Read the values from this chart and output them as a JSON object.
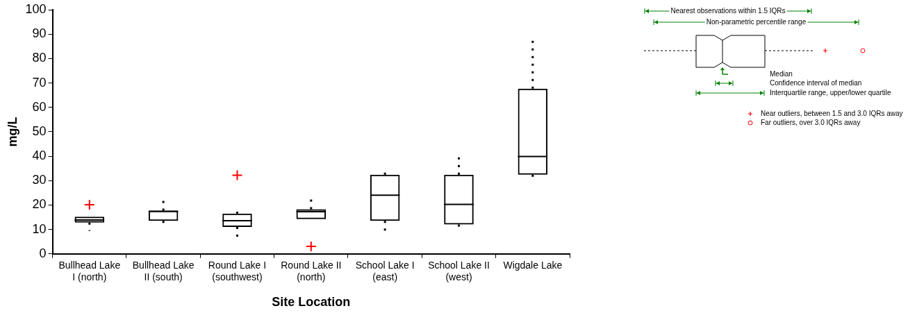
{
  "chart_data": {
    "type": "box",
    "xlabel": "Site Location",
    "ylabel": "mg/L",
    "categories": [
      "Bullhead Lake I (north)",
      "Bullhead Lake II (south)",
      "Round Lake I (southwest)",
      "Round Lake II (north)",
      "School Lake I (east)",
      "School Lake II (west)",
      "Wigdale Lake"
    ],
    "ylim": [
      0,
      100
    ],
    "yticks": [
      0,
      10,
      20,
      30,
      40,
      50,
      60,
      70,
      80,
      90,
      100
    ],
    "grid": false,
    "legend": false,
    "line_style": "dotted",
    "series": [
      {
        "color": "#000000",
        "boxes": [
          {
            "low": 9.4,
            "q1": 12.8,
            "median": 13.9,
            "q3": 15.2,
            "high": 15.2
          },
          {
            "low": 11.2,
            "q1": 13.5,
            "median": 17.4,
            "q3": 17.7,
            "high": 21.9
          },
          {
            "low": 6.2,
            "q1": 11.0,
            "median": 13.6,
            "q3": 16.5,
            "high": 17.3
          },
          {
            "low": 14.2,
            "q1": 14.2,
            "median": 17.3,
            "q3": 18.3,
            "high": 23.0
          },
          {
            "low": 8.9,
            "q1": 13.5,
            "median": 24.0,
            "q3": 32.4,
            "high": 33.4
          },
          {
            "low": 8.9,
            "q1": 12.0,
            "median": 20.3,
            "q3": 32.4,
            "high": 40.8
          },
          {
            "low": 30.3,
            "q1": 32.4,
            "median": 39.9,
            "q3": 67.7,
            "high": 87.5
          }
        ]
      },
      {
        "type": "scatter",
        "color": "#ff0000",
        "marker": "cross",
        "x": [
          "Bullhead Lake I (north)",
          "Round Lake I (southwest)",
          "Round Lake II (north)"
        ],
        "values": [
          20.1,
          32.2,
          3.1
        ]
      }
    ],
    "annotations": [
      "Nearest observations within 1.5 IQRs",
      "Non-parametric percentile range",
      "Median",
      "Confidence interval of median",
      "Interquartile range, upper/lower quartile",
      "Near outliers, between 1.5 and 3.0 IQRs away",
      "Far outliers, over 3.0 IQRs away"
    ]
  }
}
